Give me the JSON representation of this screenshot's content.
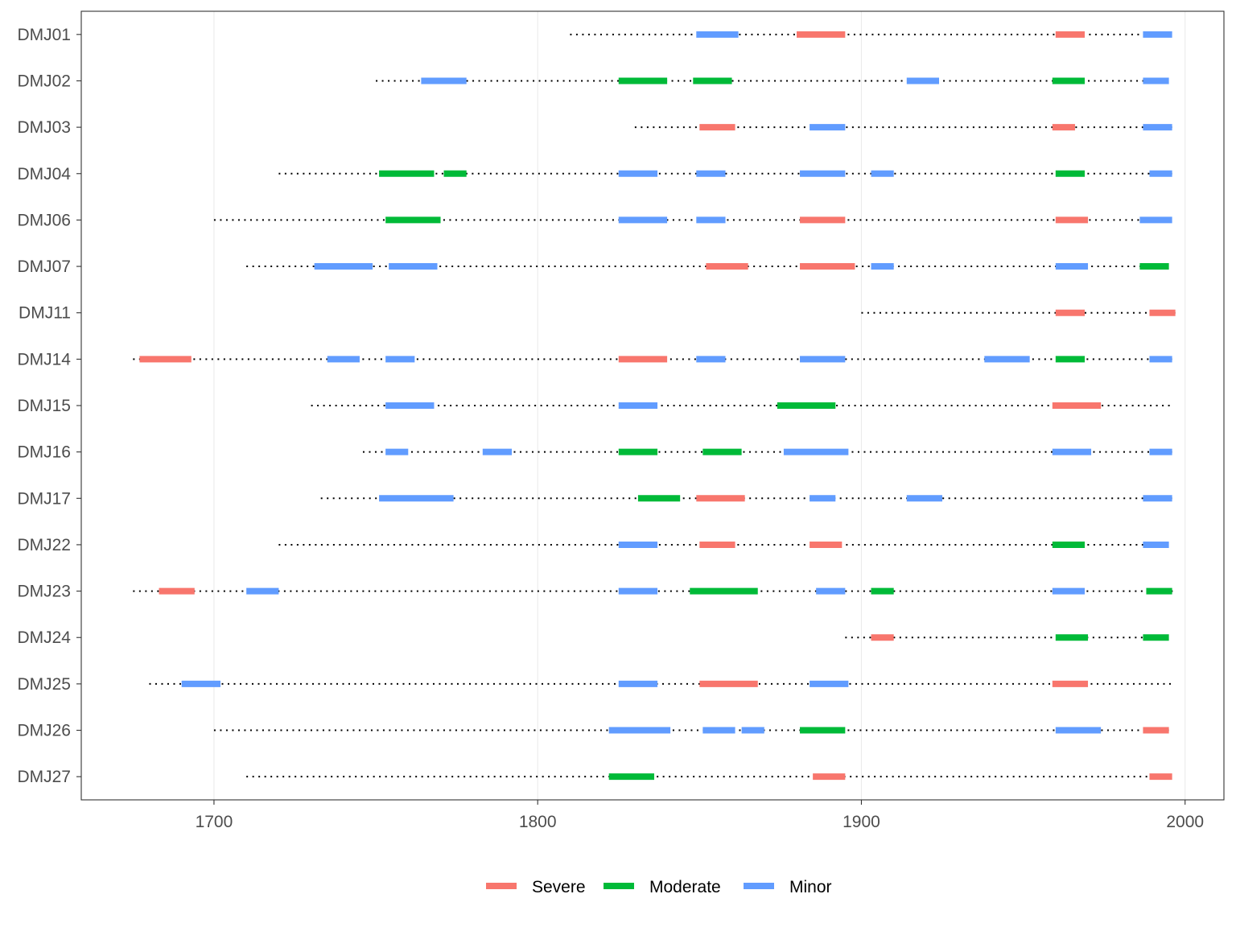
{
  "chart_data": {
    "type": "timeline",
    "xlim": [
      1659,
      2012
    ],
    "x_ticks": [
      1700,
      1800,
      1900,
      2000
    ],
    "grid": true,
    "legend_position": "bottom",
    "series": [
      {
        "name": "Severe",
        "color": "#F8766D"
      },
      {
        "name": "Moderate",
        "color": "#00BA38"
      },
      {
        "name": "Minor",
        "color": "#619CFF"
      }
    ],
    "rows": [
      {
        "label": "DMJ27",
        "span": [
          1710,
          1995
        ],
        "events": [
          {
            "start": 1822,
            "end": 1836,
            "severity": "Moderate"
          },
          {
            "start": 1885,
            "end": 1895,
            "severity": "Severe"
          },
          {
            "start": 1989,
            "end": 1996,
            "severity": "Severe"
          }
        ]
      },
      {
        "label": "DMJ26",
        "span": [
          1700,
          1995
        ],
        "events": [
          {
            "start": 1822,
            "end": 1841,
            "severity": "Minor"
          },
          {
            "start": 1851,
            "end": 1861,
            "severity": "Minor"
          },
          {
            "start": 1863,
            "end": 1870,
            "severity": "Minor"
          },
          {
            "start": 1881,
            "end": 1895,
            "severity": "Moderate"
          },
          {
            "start": 1960,
            "end": 1974,
            "severity": "Minor"
          },
          {
            "start": 1987,
            "end": 1995,
            "severity": "Severe"
          }
        ]
      },
      {
        "label": "DMJ25",
        "span": [
          1680,
          1996
        ],
        "events": [
          {
            "start": 1690,
            "end": 1702,
            "severity": "Minor"
          },
          {
            "start": 1825,
            "end": 1837,
            "severity": "Minor"
          },
          {
            "start": 1850,
            "end": 1868,
            "severity": "Severe"
          },
          {
            "start": 1884,
            "end": 1896,
            "severity": "Minor"
          },
          {
            "start": 1959,
            "end": 1970,
            "severity": "Severe"
          }
        ]
      },
      {
        "label": "DMJ24",
        "span": [
          1895,
          1995
        ],
        "events": [
          {
            "start": 1903,
            "end": 1910,
            "severity": "Severe"
          },
          {
            "start": 1960,
            "end": 1970,
            "severity": "Moderate"
          },
          {
            "start": 1987,
            "end": 1995,
            "severity": "Moderate"
          }
        ]
      },
      {
        "label": "DMJ23",
        "span": [
          1675,
          1997
        ],
        "events": [
          {
            "start": 1683,
            "end": 1694,
            "severity": "Severe"
          },
          {
            "start": 1710,
            "end": 1720,
            "severity": "Minor"
          },
          {
            "start": 1825,
            "end": 1837,
            "severity": "Minor"
          },
          {
            "start": 1847,
            "end": 1868,
            "severity": "Moderate"
          },
          {
            "start": 1886,
            "end": 1895,
            "severity": "Minor"
          },
          {
            "start": 1903,
            "end": 1910,
            "severity": "Moderate"
          },
          {
            "start": 1959,
            "end": 1969,
            "severity": "Minor"
          },
          {
            "start": 1988,
            "end": 1996,
            "severity": "Moderate"
          }
        ]
      },
      {
        "label": "DMJ22",
        "span": [
          1720,
          1995
        ],
        "events": [
          {
            "start": 1825,
            "end": 1837,
            "severity": "Minor"
          },
          {
            "start": 1850,
            "end": 1861,
            "severity": "Severe"
          },
          {
            "start": 1884,
            "end": 1894,
            "severity": "Severe"
          },
          {
            "start": 1959,
            "end": 1969,
            "severity": "Moderate"
          },
          {
            "start": 1987,
            "end": 1995,
            "severity": "Minor"
          }
        ]
      },
      {
        "label": "DMJ17",
        "span": [
          1733,
          1996
        ],
        "events": [
          {
            "start": 1751,
            "end": 1774,
            "severity": "Minor"
          },
          {
            "start": 1831,
            "end": 1844,
            "severity": "Moderate"
          },
          {
            "start": 1849,
            "end": 1864,
            "severity": "Severe"
          },
          {
            "start": 1884,
            "end": 1892,
            "severity": "Minor"
          },
          {
            "start": 1914,
            "end": 1925,
            "severity": "Minor"
          },
          {
            "start": 1987,
            "end": 1996,
            "severity": "Minor"
          }
        ]
      },
      {
        "label": "DMJ16",
        "span": [
          1746,
          1996
        ],
        "events": [
          {
            "start": 1753,
            "end": 1760,
            "severity": "Minor"
          },
          {
            "start": 1783,
            "end": 1792,
            "severity": "Minor"
          },
          {
            "start": 1825,
            "end": 1837,
            "severity": "Moderate"
          },
          {
            "start": 1851,
            "end": 1863,
            "severity": "Moderate"
          },
          {
            "start": 1876,
            "end": 1896,
            "severity": "Minor"
          },
          {
            "start": 1959,
            "end": 1971,
            "severity": "Minor"
          },
          {
            "start": 1989,
            "end": 1996,
            "severity": "Minor"
          }
        ]
      },
      {
        "label": "DMJ15",
        "span": [
          1730,
          1996
        ],
        "events": [
          {
            "start": 1753,
            "end": 1768,
            "severity": "Minor"
          },
          {
            "start": 1825,
            "end": 1837,
            "severity": "Minor"
          },
          {
            "start": 1874,
            "end": 1892,
            "severity": "Moderate"
          },
          {
            "start": 1959,
            "end": 1974,
            "severity": "Severe"
          }
        ]
      },
      {
        "label": "DMJ14",
        "span": [
          1675,
          1996
        ],
        "events": [
          {
            "start": 1677,
            "end": 1693,
            "severity": "Severe"
          },
          {
            "start": 1735,
            "end": 1745,
            "severity": "Minor"
          },
          {
            "start": 1753,
            "end": 1762,
            "severity": "Minor"
          },
          {
            "start": 1825,
            "end": 1840,
            "severity": "Severe"
          },
          {
            "start": 1849,
            "end": 1858,
            "severity": "Minor"
          },
          {
            "start": 1881,
            "end": 1895,
            "severity": "Minor"
          },
          {
            "start": 1938,
            "end": 1952,
            "severity": "Minor"
          },
          {
            "start": 1960,
            "end": 1969,
            "severity": "Moderate"
          },
          {
            "start": 1989,
            "end": 1996,
            "severity": "Minor"
          }
        ]
      },
      {
        "label": "DMJ11",
        "span": [
          1900,
          1997
        ],
        "events": [
          {
            "start": 1960,
            "end": 1969,
            "severity": "Severe"
          },
          {
            "start": 1989,
            "end": 1997,
            "severity": "Severe"
          }
        ]
      },
      {
        "label": "DMJ07",
        "span": [
          1710,
          1995
        ],
        "events": [
          {
            "start": 1731,
            "end": 1749,
            "severity": "Minor"
          },
          {
            "start": 1754,
            "end": 1769,
            "severity": "Minor"
          },
          {
            "start": 1852,
            "end": 1865,
            "severity": "Severe"
          },
          {
            "start": 1881,
            "end": 1898,
            "severity": "Severe"
          },
          {
            "start": 1903,
            "end": 1910,
            "severity": "Minor"
          },
          {
            "start": 1960,
            "end": 1970,
            "severity": "Minor"
          },
          {
            "start": 1986,
            "end": 1995,
            "severity": "Moderate"
          }
        ]
      },
      {
        "label": "DMJ06",
        "span": [
          1700,
          1996
        ],
        "events": [
          {
            "start": 1753,
            "end": 1770,
            "severity": "Moderate"
          },
          {
            "start": 1825,
            "end": 1840,
            "severity": "Minor"
          },
          {
            "start": 1849,
            "end": 1858,
            "severity": "Minor"
          },
          {
            "start": 1881,
            "end": 1895,
            "severity": "Severe"
          },
          {
            "start": 1960,
            "end": 1970,
            "severity": "Severe"
          },
          {
            "start": 1986,
            "end": 1996,
            "severity": "Minor"
          }
        ]
      },
      {
        "label": "DMJ04",
        "span": [
          1720,
          1996
        ],
        "events": [
          {
            "start": 1751,
            "end": 1768,
            "severity": "Moderate"
          },
          {
            "start": 1771,
            "end": 1778,
            "severity": "Moderate"
          },
          {
            "start": 1825,
            "end": 1837,
            "severity": "Minor"
          },
          {
            "start": 1849,
            "end": 1858,
            "severity": "Minor"
          },
          {
            "start": 1881,
            "end": 1895,
            "severity": "Minor"
          },
          {
            "start": 1903,
            "end": 1910,
            "severity": "Minor"
          },
          {
            "start": 1960,
            "end": 1969,
            "severity": "Moderate"
          },
          {
            "start": 1989,
            "end": 1996,
            "severity": "Minor"
          }
        ]
      },
      {
        "label": "DMJ03",
        "span": [
          1830,
          1996
        ],
        "events": [
          {
            "start": 1850,
            "end": 1861,
            "severity": "Severe"
          },
          {
            "start": 1884,
            "end": 1895,
            "severity": "Minor"
          },
          {
            "start": 1959,
            "end": 1966,
            "severity": "Severe"
          },
          {
            "start": 1987,
            "end": 1996,
            "severity": "Minor"
          }
        ]
      },
      {
        "label": "DMJ02",
        "span": [
          1750,
          1995
        ],
        "events": [
          {
            "start": 1764,
            "end": 1778,
            "severity": "Minor"
          },
          {
            "start": 1825,
            "end": 1840,
            "severity": "Moderate"
          },
          {
            "start": 1848,
            "end": 1860,
            "severity": "Moderate"
          },
          {
            "start": 1914,
            "end": 1924,
            "severity": "Minor"
          },
          {
            "start": 1959,
            "end": 1969,
            "severity": "Moderate"
          },
          {
            "start": 1987,
            "end": 1995,
            "severity": "Minor"
          }
        ]
      },
      {
        "label": "DMJ01",
        "span": [
          1810,
          1996
        ],
        "events": [
          {
            "start": 1849,
            "end": 1862,
            "severity": "Minor"
          },
          {
            "start": 1880,
            "end": 1895,
            "severity": "Severe"
          },
          {
            "start": 1960,
            "end": 1969,
            "severity": "Severe"
          },
          {
            "start": 1987,
            "end": 1996,
            "severity": "Minor"
          }
        ]
      }
    ]
  }
}
